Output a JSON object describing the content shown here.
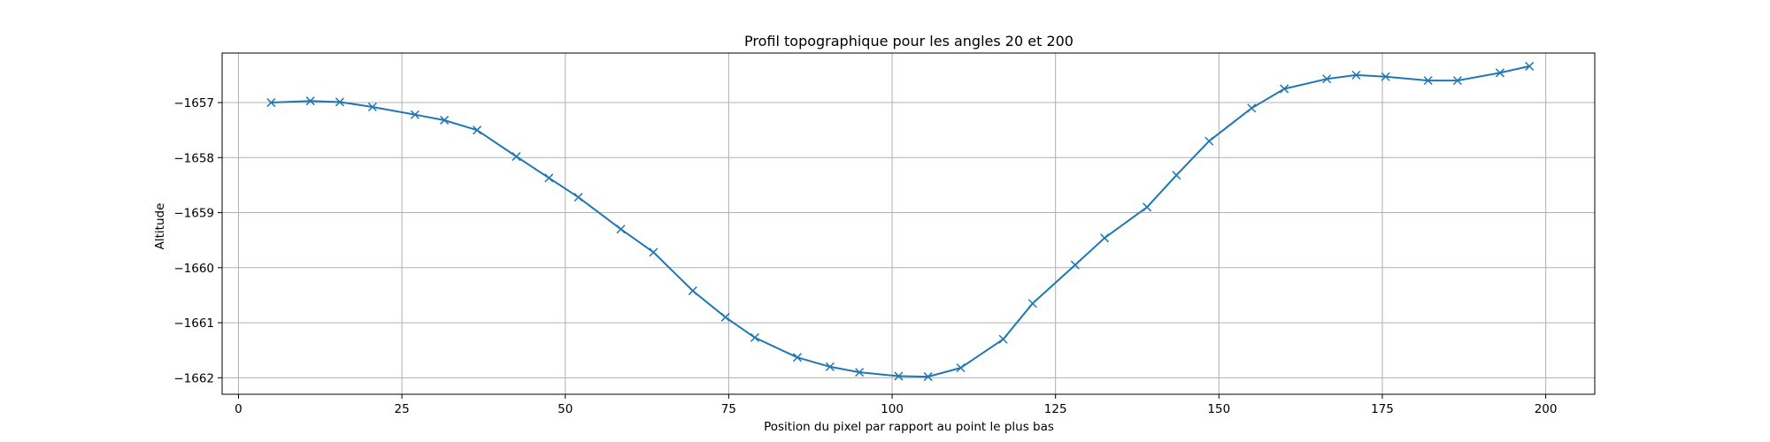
{
  "chart_data": {
    "type": "line",
    "title": "Profil topographique pour les angles 20 et 200",
    "xlabel": "Position du pixel par rapport au point le plus bas",
    "ylabel": "Altitude",
    "xlim": [
      -2.5,
      207.5
    ],
    "ylim": [
      -1662.3,
      -1656.1
    ],
    "xticks": [
      0,
      25,
      50,
      75,
      100,
      125,
      150,
      175,
      200
    ],
    "yticks": [
      -1662,
      -1661,
      -1660,
      -1659,
      -1658,
      -1657
    ],
    "grid": true,
    "marker": "x",
    "color": "#1f77b4",
    "series": [
      {
        "x": [
          5,
          11,
          15.5,
          20.5,
          27,
          31.5,
          36.5,
          42.5,
          47.5,
          52,
          58.5,
          63.5,
          69.5,
          74.5,
          79,
          85.5,
          90.5,
          95,
          101,
          105.5,
          110.5,
          117,
          121.5,
          128,
          132.5,
          139,
          143.5,
          148.5,
          155,
          160,
          166.5,
          171,
          175.5,
          182,
          186.5,
          193,
          197.5
        ],
        "y": [
          -1657.0,
          -1656.97,
          -1656.99,
          -1657.08,
          -1657.22,
          -1657.32,
          -1657.5,
          -1657.98,
          -1658.37,
          -1658.72,
          -1659.3,
          -1659.72,
          -1660.42,
          -1660.9,
          -1661.27,
          -1661.63,
          -1661.8,
          -1661.9,
          -1661.97,
          -1661.98,
          -1661.82,
          -1661.3,
          -1660.65,
          -1659.95,
          -1659.46,
          -1658.9,
          -1658.32,
          -1657.7,
          -1657.1,
          -1656.75,
          -1656.57,
          -1656.5,
          -1656.53,
          -1656.6,
          -1656.6,
          -1656.46,
          -1656.34
        ]
      }
    ]
  }
}
